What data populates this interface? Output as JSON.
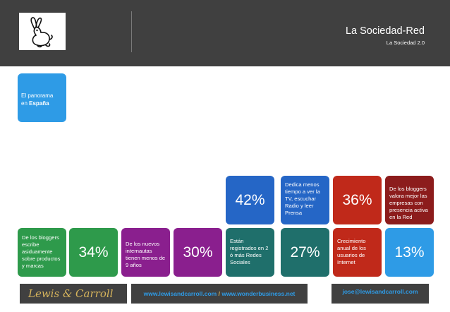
{
  "header": {
    "title": "La Sociedad-Red",
    "subtitle": "La Sociedad 2.0",
    "logo_icon": "rabbit-icon"
  },
  "intro": {
    "line1": "El panorama",
    "line2_prefix": "en ",
    "line2_bold": "España"
  },
  "stats": [
    {
      "text": "De los bloggers escribe asiduamente sobre productos y marcas",
      "percent": "34%",
      "color": "#2e9a4b",
      "text_color": "#2e9a4b"
    },
    {
      "text": "De los nuevos internautas tienen menos de 9 años",
      "percent": "30%",
      "color": "#8a1f8e",
      "text_color": "#8a1f8e"
    },
    {
      "text": "Están registrados en 2 ó más Redes Sociales",
      "percent": "42%",
      "color": "#1f6f6b",
      "text_color": "#2566c6",
      "percent_top": true
    },
    {
      "text": "Dedica menos tiempo a ver la TV, escuchar Radio y leer Prensa",
      "percent": "27%",
      "color": "#2566c6",
      "text_color": "#1f6f6b"
    },
    {
      "text": "Crecimiento anual de los usuarios de Internet",
      "percent": "36%",
      "color": "#c0291a",
      "text_color": "#c0291a"
    },
    {
      "text": "De los bloggers valora mejor las empresas con presencia activa en la Red",
      "percent": "13%",
      "color": "#2e9be6",
      "text_color": "#8c1c1c"
    }
  ],
  "footer": {
    "brand": "Lewis & Carroll",
    "websites_part1": "www.lewisandcarroll.com",
    "websites_sep": " / ",
    "websites_part2": "www.wonderbusiness.net",
    "email": "jose@lewisandcarroll.com"
  }
}
